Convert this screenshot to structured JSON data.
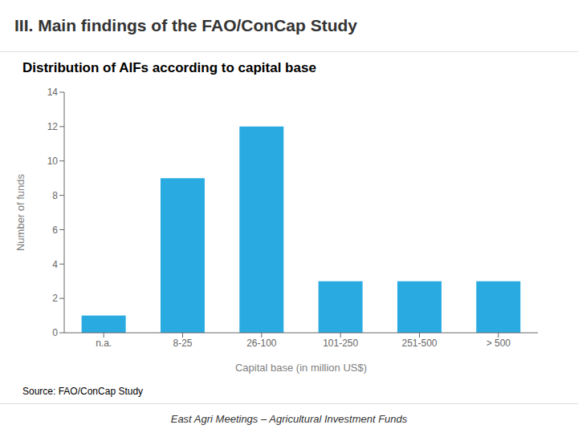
{
  "chart_data": {
    "type": "bar",
    "title": "III. Main findings of the FAO/ConCap Study",
    "subtitle": "Distribution of AIFs according to capital base",
    "categories": [
      "n.a.",
      "8-25",
      "26-100",
      "101-250",
      "251-500",
      "> 500"
    ],
    "values": [
      1,
      9,
      12,
      3,
      3,
      3
    ],
    "color": "#29ABE2",
    "xlabel": "Capital base (in million US$)",
    "ylabel": "Number of funds",
    "ylim": [
      0,
      14
    ],
    "yticks": [
      0,
      2,
      4,
      6,
      8,
      10,
      12,
      14
    ],
    "grid": false,
    "annotations": [
      "Source: FAO/ConCap Study",
      "East Agri Meetings – Agricultural Investment Funds"
    ]
  }
}
